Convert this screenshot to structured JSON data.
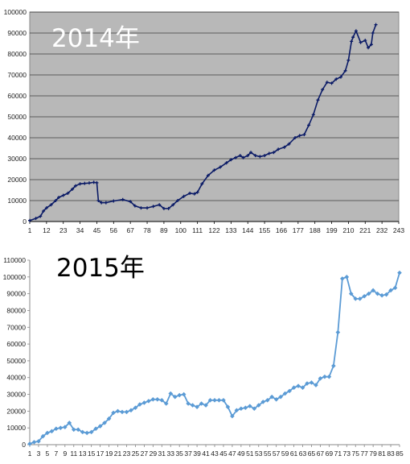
{
  "chart_data": [
    {
      "type": "line",
      "title": "2014年",
      "xlabel": "",
      "ylabel": "",
      "grid": true,
      "background": "#b8b8b8",
      "line_color": "#0a1a66",
      "ylim": [
        0,
        100000
      ],
      "yticks": [
        0,
        10000,
        20000,
        30000,
        40000,
        50000,
        60000,
        70000,
        80000,
        90000,
        100000
      ],
      "ytick_labels": [
        "0",
        "10000",
        "20000",
        "30000",
        "40000",
        "50000",
        "60000",
        "70000",
        "80000",
        "90000",
        "100000"
      ],
      "xlim": [
        1,
        243
      ],
      "xticks": [
        1,
        12,
        23,
        34,
        45,
        56,
        67,
        78,
        89,
        100,
        111,
        122,
        133,
        144,
        155,
        166,
        177,
        188,
        199,
        210,
        221,
        232,
        243
      ],
      "points": [
        [
          1,
          500
        ],
        [
          5,
          1500
        ],
        [
          8,
          2500
        ],
        [
          10,
          5000
        ],
        [
          12,
          6500
        ],
        [
          15,
          8000
        ],
        [
          18,
          10000
        ],
        [
          20,
          11500
        ],
        [
          23,
          12500
        ],
        [
          26,
          13500
        ],
        [
          29,
          15500
        ],
        [
          31,
          17000
        ],
        [
          34,
          18000
        ],
        [
          37,
          18200
        ],
        [
          40,
          18400
        ],
        [
          43,
          18700
        ],
        [
          45,
          18500
        ],
        [
          46,
          10000
        ],
        [
          48,
          9000
        ],
        [
          51,
          9000
        ],
        [
          56,
          9800
        ],
        [
          62,
          10500
        ],
        [
          67,
          9500
        ],
        [
          70,
          7500
        ],
        [
          74,
          6500
        ],
        [
          78,
          6500
        ],
        [
          82,
          7200
        ],
        [
          86,
          8000
        ],
        [
          89,
          6200
        ],
        [
          92,
          6200
        ],
        [
          95,
          8000
        ],
        [
          98,
          10000
        ],
        [
          102,
          12000
        ],
        [
          106,
          13500
        ],
        [
          109,
          13200
        ],
        [
          111,
          14000
        ],
        [
          114,
          18000
        ],
        [
          118,
          22000
        ],
        [
          122,
          24500
        ],
        [
          126,
          26000
        ],
        [
          130,
          28000
        ],
        [
          133,
          29500
        ],
        [
          136,
          30500
        ],
        [
          139,
          31500
        ],
        [
          141,
          30500
        ],
        [
          144,
          31500
        ],
        [
          146,
          33000
        ],
        [
          149,
          31500
        ],
        [
          152,
          31000
        ],
        [
          155,
          31500
        ],
        [
          158,
          32500
        ],
        [
          161,
          33000
        ],
        [
          164,
          34500
        ],
        [
          168,
          35500
        ],
        [
          171,
          37000
        ],
        [
          175,
          40000
        ],
        [
          178,
          41000
        ],
        [
          181,
          41500
        ],
        [
          184,
          46000
        ],
        [
          187,
          51000
        ],
        [
          190,
          58000
        ],
        [
          193,
          63000
        ],
        [
          196,
          66500
        ],
        [
          199,
          66000
        ],
        [
          202,
          68000
        ],
        [
          205,
          69000
        ],
        [
          208,
          72000
        ],
        [
          210,
          77000
        ],
        [
          212,
          86000
        ],
        [
          213,
          88000
        ],
        [
          215,
          91000
        ],
        [
          218,
          85500
        ],
        [
          221,
          86500
        ],
        [
          223,
          83000
        ],
        [
          225,
          84500
        ],
        [
          226,
          90000
        ],
        [
          228,
          94000
        ]
      ]
    },
    {
      "type": "line",
      "title": "2015年",
      "xlabel": "",
      "ylabel": "",
      "grid": false,
      "background": "#ffffff",
      "line_color": "#5b9bd5",
      "ylim": [
        0,
        110000
      ],
      "yticks": [
        0,
        10000,
        20000,
        30000,
        40000,
        50000,
        60000,
        70000,
        80000,
        90000,
        100000,
        110000
      ],
      "ytick_labels": [
        "0",
        "10000",
        "20000",
        "30000",
        "40000",
        "50000",
        "60000",
        "70000",
        "80000",
        "90000",
        "100000",
        "110000"
      ],
      "xlim": [
        1,
        85
      ],
      "xticks": [
        1,
        3,
        5,
        7,
        9,
        11,
        13,
        15,
        17,
        19,
        21,
        23,
        25,
        27,
        29,
        31,
        33,
        35,
        37,
        39,
        41,
        43,
        45,
        47,
        49,
        51,
        53,
        55,
        57,
        59,
        61,
        63,
        65,
        67,
        69,
        71,
        73,
        75,
        77,
        79,
        81,
        83,
        85
      ],
      "x": [
        1,
        2,
        3,
        4,
        5,
        6,
        7,
        8,
        9,
        10,
        11,
        12,
        13,
        14,
        15,
        16,
        17,
        18,
        19,
        20,
        21,
        22,
        23,
        24,
        25,
        26,
        27,
        28,
        29,
        30,
        31,
        32,
        33,
        34,
        35,
        36,
        37,
        38,
        39,
        40,
        41,
        42,
        43,
        44,
        45,
        46,
        47,
        48,
        49,
        50,
        51,
        52,
        53,
        54,
        55,
        56,
        57,
        58,
        59,
        60,
        61,
        62,
        63,
        64,
        65,
        66,
        67,
        68,
        69,
        70,
        71,
        72,
        73,
        74,
        75,
        76,
        77,
        78,
        79,
        80,
        81,
        82,
        83,
        84,
        85
      ],
      "values": [
        500,
        1500,
        2000,
        5000,
        7000,
        8000,
        9500,
        10000,
        10500,
        13000,
        9000,
        9000,
        7500,
        7000,
        7500,
        9500,
        11000,
        13000,
        15500,
        19000,
        20000,
        19500,
        19500,
        20500,
        22000,
        24000,
        25000,
        26000,
        27000,
        27000,
        26500,
        24500,
        30500,
        28500,
        29500,
        30000,
        24500,
        23500,
        22500,
        24500,
        23500,
        26500,
        26500,
        26500,
        26500,
        22500,
        17000,
        20500,
        21500,
        22000,
        23000,
        21500,
        23500,
        25500,
        26500,
        28500,
        27000,
        28500,
        30500,
        32000,
        34000,
        35000,
        34000,
        36500,
        37000,
        35500,
        39500,
        40500,
        40500,
        47000,
        67000,
        99000,
        100000,
        90000,
        87000,
        87000,
        88500,
        90000,
        92000,
        90000,
        89000,
        89500,
        92000,
        93500,
        102500
      ]
    }
  ]
}
